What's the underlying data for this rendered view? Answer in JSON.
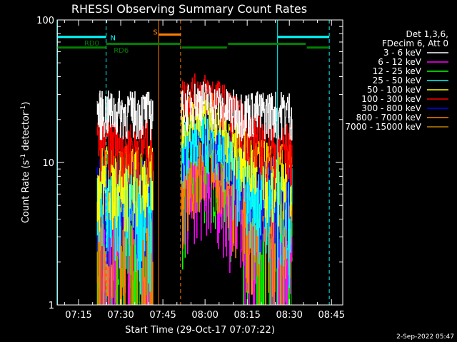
{
  "chart_data": {
    "type": "line",
    "title": "RHESSI Observing Summary Count Rates",
    "ylabel_main": "Count Rate (s",
    "ylabel_sup": "-1",
    "ylabel_tail": " detector",
    "ylabel_close": ")",
    "xlabel": "Start Time (29-Oct-17 07:07:22)",
    "y_scale": "log",
    "ylim": [
      1,
      100
    ],
    "xlim_minutes": [
      427.37,
      529.0
    ],
    "x_ticks": [
      {
        "label": "07:15",
        "minute": 435
      },
      {
        "label": "07:30",
        "minute": 450
      },
      {
        "label": "07:45",
        "minute": 465
      },
      {
        "label": "08:00",
        "minute": 480
      },
      {
        "label": "08:15",
        "minute": 495
      },
      {
        "label": "08:30",
        "minute": 510
      },
      {
        "label": "08:45",
        "minute": 525
      }
    ],
    "y_tick_labels": [
      {
        "label": "100",
        "value": 100
      },
      {
        "label": "10",
        "value": 10
      },
      {
        "label": "1",
        "value": 1
      }
    ],
    "legend_header": [
      "Det 1,3,6,",
      "FDecim 6, Att 0"
    ],
    "series": [
      {
        "name": "3 - 6 keV",
        "color": "#ffffff",
        "segments": [
          {
            "t": [
              441.5,
              461.5
            ],
            "v": [
              23,
              23
            ]
          },
          {
            "t": [
              471.5,
              475,
              479,
              483,
              487,
              493,
              500,
              506,
              511
            ],
            "v": [
              23,
              27,
              28,
              26,
              24,
              23,
              23,
              23,
              23
            ]
          }
        ]
      },
      {
        "name": "6 - 12 keV",
        "color": "#ff00ff",
        "segments": [
          {
            "t": [
              441.5,
              461.5
            ],
            "v": [
              3.4,
              3.4
            ]
          },
          {
            "t": [
              471.5,
              475,
              478,
              481,
              484,
              487,
              490,
              495,
              503,
              511
            ],
            "v": [
              5.5,
              7,
              7.5,
              7.5,
              7,
              6.5,
              5.5,
              4.5,
              3.5,
              3.4
            ]
          }
        ]
      },
      {
        "name": "12 - 25 keV",
        "color": "#00ff00",
        "segments": [
          {
            "t": [
              441.5,
              461.5
            ],
            "v": [
              2.2,
              2.2
            ]
          },
          {
            "t": [
              471.5,
              475,
              478,
              481,
              484,
              487,
              490,
              493,
              496,
              500,
              505,
              511
            ],
            "v": [
              5.5,
              7.5,
              8.5,
              9,
              8.5,
              7.5,
              6,
              4,
              3,
              2.5,
              2.2,
              2.2
            ]
          }
        ]
      },
      {
        "name": "25 - 50 keV",
        "color": "#00ffff",
        "segments": [
          {
            "t": [
              441.5,
              461.5
            ],
            "v": [
              5.2,
              5.2
            ]
          },
          {
            "t": [
              471.5,
              475,
              479,
              483,
              486,
              489,
              493,
              498,
              505,
              511
            ],
            "v": [
              12,
              15,
              16,
              15,
              12.5,
              10,
              7.5,
              6.5,
              5.5,
              5.2
            ]
          }
        ]
      },
      {
        "name": "50 - 100 keV",
        "color": "#ffff00",
        "segments": [
          {
            "t": [
              441.5,
              461.5
            ],
            "v": [
              8.2,
              8.2
            ]
          },
          {
            "t": [
              471.5,
              475,
              479,
              483,
              487,
              491,
              496,
              503,
              511
            ],
            "v": [
              19,
              23,
              24,
              22,
              18,
              14,
              10,
              8.5,
              8.2
            ]
          }
        ]
      },
      {
        "name": "100 - 300 keV",
        "color": "#ff0000",
        "segments": [
          {
            "t": [
              441.5,
              446,
              452,
              457,
              461.5
            ],
            "v": [
              14,
              14.5,
              13,
              13.5,
              13
            ]
          },
          {
            "t": [
              471.5,
              475,
              479,
              482,
              486,
              490,
              494,
              498,
              503,
              511
            ],
            "v": [
              29,
              31,
              32,
              31,
              27,
              22,
              18,
              15,
              13,
              12.5
            ]
          }
        ]
      },
      {
        "name": "300 - 800 keV",
        "color": "#0000ff",
        "segments": [
          {
            "t": [
              441.5,
              461.5
            ],
            "v": [
              6.2,
              6.2
            ]
          },
          {
            "t": [
              471.5,
              475,
              479,
              483,
              487,
              491,
              495,
              500,
              506,
              511
            ],
            "v": [
              14,
              16,
              17,
              15.5,
              12.5,
              9.5,
              7.5,
              6.8,
              6.2,
              6.2
            ]
          }
        ]
      },
      {
        "name": "800 - 7000 keV",
        "color": "#ff8000",
        "segments": [
          {
            "t": [
              441.5,
              461.5
            ],
            "v": [
              3.4,
              3.4
            ]
          },
          {
            "t": [
              471.5,
              475,
              479,
              482,
              486,
              490,
              494,
              499,
              505,
              511
            ],
            "v": [
              6.5,
              8.5,
              10,
              11,
              9.5,
              7,
              5,
              4,
              3.6,
              3.4
            ]
          }
        ]
      },
      {
        "name": "7000 - 15000 keV",
        "color": "#c08000",
        "segments": []
      }
    ],
    "annotations": {
      "vertical_lines": [
        {
          "minute": 427.5,
          "color": "#00ffff",
          "dash": false
        },
        {
          "minute": 444.8,
          "color": "#00ffff",
          "dash": true
        },
        {
          "minute": 463.5,
          "color": "#ff8000",
          "dash": false
        },
        {
          "minute": 471.3,
          "color": "#ff8000",
          "dash": true
        },
        {
          "minute": 505.8,
          "color": "#00ffff",
          "dash": false
        },
        {
          "minute": 524.2,
          "color": "#00ffff",
          "dash": true
        }
      ],
      "bars": [
        {
          "value": 76,
          "color": "#00ffff",
          "from": 427.5,
          "to": 444.8
        },
        {
          "value": 76,
          "color": "#00ffff",
          "from": 505.8,
          "to": 524.2
        },
        {
          "value": 79,
          "color": "#ff8000",
          "from": 463.5,
          "to": 471.3
        },
        {
          "value": 64,
          "color": "#008000",
          "from": 427.5,
          "to": 444.8
        },
        {
          "value": 68,
          "color": "#008000",
          "from": 444.8,
          "to": 471.3
        },
        {
          "value": 64,
          "color": "#008000",
          "from": 471.7,
          "to": 487.8
        },
        {
          "value": 68,
          "color": "#008000",
          "from": 488.2,
          "to": 515.8
        },
        {
          "value": 64,
          "color": "#008000",
          "from": 516.2,
          "to": 524.2
        }
      ],
      "labels": [
        {
          "text": "N",
          "color": "#00ffff",
          "minute": 446.3,
          "value": 72
        },
        {
          "text": "S",
          "color": "#ff8000",
          "minute": 461.5,
          "value": 79
        },
        {
          "text": "RD0",
          "color": "#008000",
          "minute": 437.0,
          "value": 66
        },
        {
          "text": "RD6",
          "color": "#008000",
          "minute": 447.5,
          "value": 59
        }
      ]
    }
  },
  "footer_timestamp": "2-Sep-2022 05:47"
}
